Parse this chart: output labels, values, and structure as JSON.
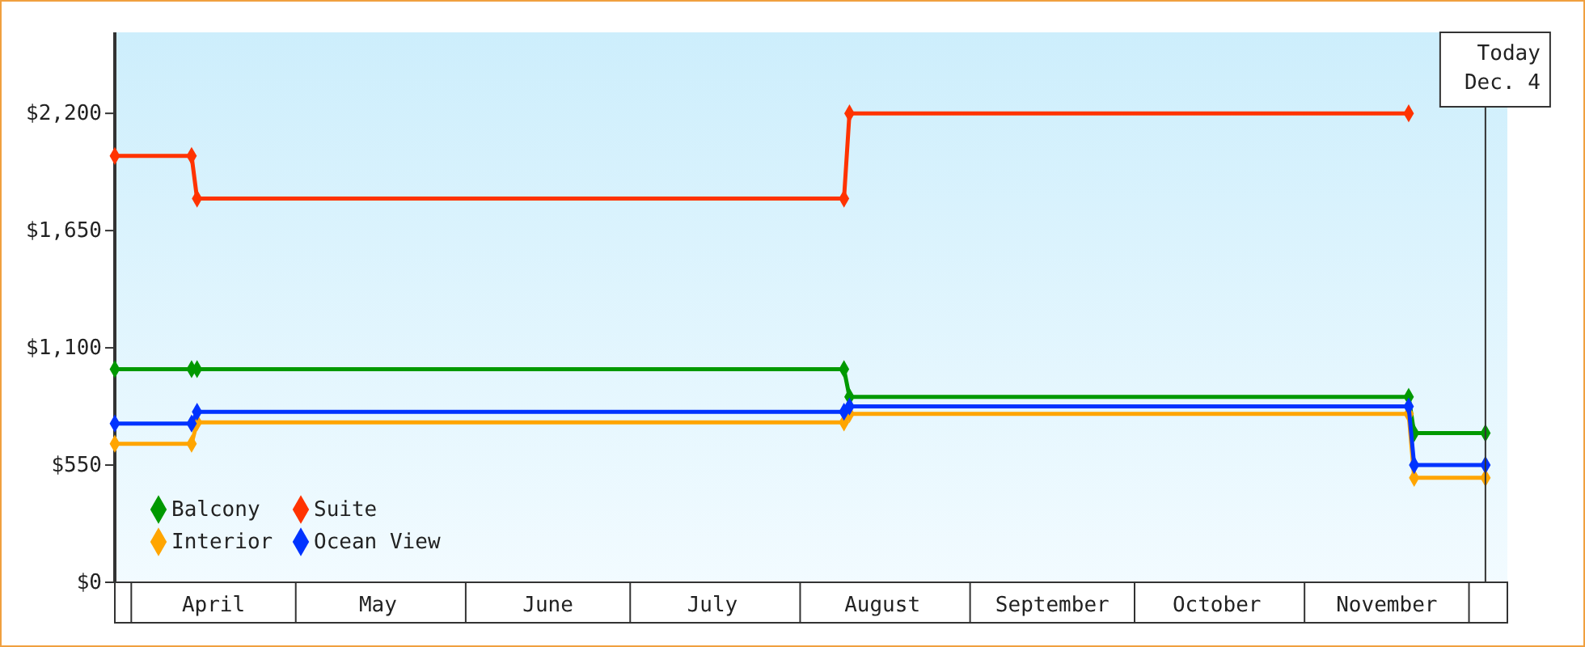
{
  "chart_data": {
    "type": "line",
    "legend": "bottom left",
    "marker": "diamond",
    "line_style": "solid",
    "xlim": [
      "--03-29",
      "--12-08"
    ],
    "xticks": [
      {
        "value": "--04-01",
        "label": null
      },
      {
        "value": "--04-16",
        "label": "April"
      },
      {
        "value": "--05-01",
        "label": null
      },
      {
        "value": "--05-16",
        "label": "May"
      },
      {
        "value": "--06-01",
        "label": null
      },
      {
        "value": "--06-16",
        "label": "June"
      },
      {
        "value": "--07-01",
        "label": null
      },
      {
        "value": "--07-16",
        "label": "July"
      },
      {
        "value": "--08-01",
        "label": null
      },
      {
        "value": "--08-16",
        "label": "August"
      },
      {
        "value": "--09-01",
        "label": null
      },
      {
        "value": "--09-16",
        "label": "September"
      },
      {
        "value": "--10-01",
        "label": null
      },
      {
        "value": "--10-16",
        "label": "October"
      },
      {
        "value": "--11-01",
        "label": null
      },
      {
        "value": "--11-16",
        "label": "November"
      },
      {
        "value": "--12-01",
        "label": null
      }
    ],
    "ylim": [
      0,
      2580
    ],
    "yticks": [
      {
        "value": 0,
        "label": "$0"
      },
      {
        "value": 550,
        "label": "$550"
      },
      {
        "value": 1100,
        "label": "$1,100"
      },
      {
        "value": 1650,
        "label": "$1,650"
      },
      {
        "value": 2200,
        "label": "$2,200"
      }
    ],
    "ref_lines": [
      {
        "axis": "x",
        "value": "--12-04",
        "label": "Today\nDec. 4",
        "color": "#333333"
      }
    ],
    "series": [
      {
        "name": "Balcony",
        "color": "#009900",
        "x": [
          "--03-29",
          "--04-12",
          "--04-13",
          "--08-09",
          "--08-10",
          "--11-20",
          "--11-21",
          "--12-04"
        ],
        "values": [
          1000,
          1000,
          1000,
          1000,
          870,
          870,
          700,
          700
        ]
      },
      {
        "name": "Suite",
        "color": "#ff3300",
        "x": [
          "--03-29",
          "--04-12",
          "--04-13",
          "--08-09",
          "--08-10",
          "--11-20"
        ],
        "values": [
          2000,
          2000,
          1800,
          1800,
          2200,
          2200
        ]
      },
      {
        "name": "Interior",
        "color": "#ffa500",
        "x": [
          "--03-29",
          "--04-12",
          "--04-13",
          "--08-09",
          "--08-10",
          "--11-20",
          "--11-21",
          "--12-04"
        ],
        "values": [
          650,
          650,
          750,
          750,
          790,
          790,
          490,
          490
        ]
      },
      {
        "name": "Ocean View",
        "color": "#0033ff",
        "x": [
          "--03-29",
          "--04-12",
          "--04-13",
          "--08-09",
          "--08-10",
          "--11-20",
          "--11-21",
          "--12-04"
        ],
        "values": [
          745,
          745,
          800,
          800,
          825,
          825,
          550,
          550
        ]
      }
    ]
  }
}
